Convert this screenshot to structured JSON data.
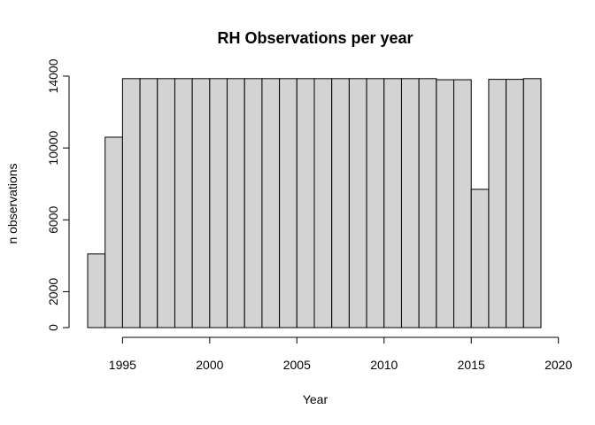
{
  "chart_data": {
    "type": "bar",
    "title": "RH Observations per year",
    "xlabel": "Year",
    "ylabel": "n observations",
    "bar_color": "#d3d3d3",
    "bar_edge_color": "#000000",
    "bin_width": 1,
    "x": [
      1993,
      1994,
      1995,
      1996,
      1997,
      1998,
      1999,
      2000,
      2001,
      2002,
      2003,
      2004,
      2005,
      2006,
      2007,
      2008,
      2009,
      2010,
      2011,
      2012,
      2013,
      2014,
      2015,
      2016,
      2017,
      2018
    ],
    "values": [
      4100,
      10600,
      13860,
      13860,
      13860,
      13860,
      13860,
      13860,
      13860,
      13860,
      13860,
      13860,
      13860,
      13860,
      13860,
      13860,
      13860,
      13860,
      13860,
      13860,
      13800,
      13800,
      7700,
      13820,
      13820,
      13860
    ],
    "xlim": [
      1993,
      2019
    ],
    "ylim": [
      0,
      13900
    ],
    "xticks": [
      1995,
      2000,
      2005,
      2010,
      2015,
      2020
    ],
    "yticks": [
      0,
      2000,
      6000,
      10000,
      14000
    ],
    "grid": false,
    "legend": "none"
  }
}
